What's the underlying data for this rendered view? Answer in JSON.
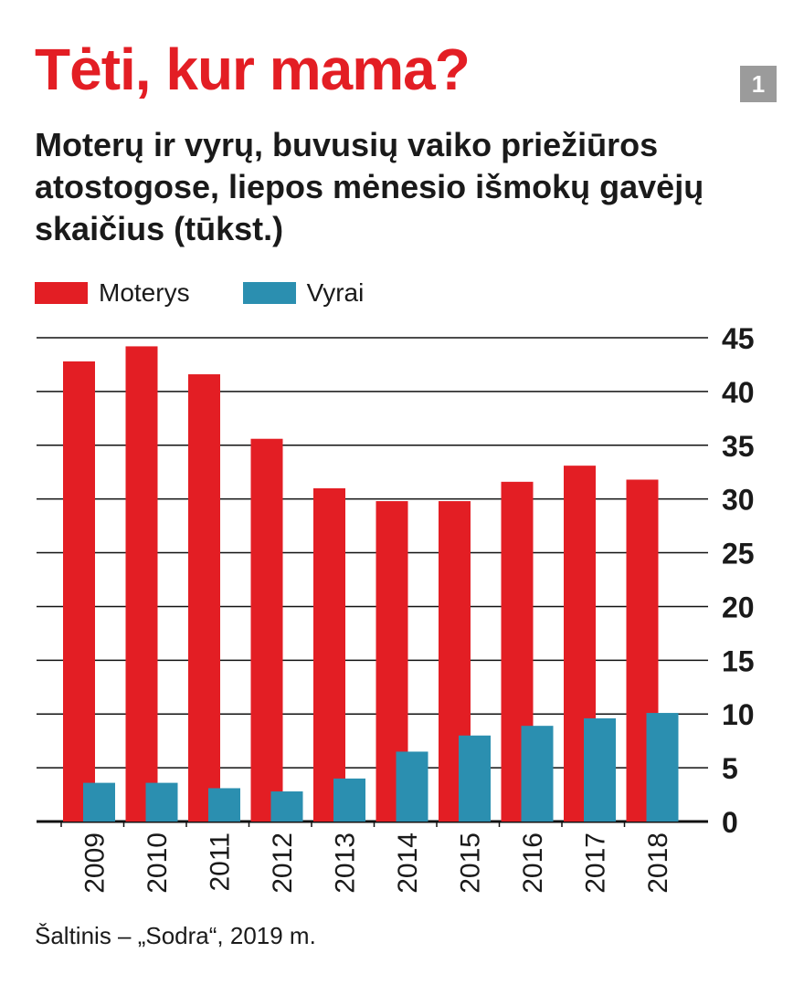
{
  "header": {
    "title": "Tėti, kur mama?",
    "badge": "1",
    "subtitle": "Moterų ir vyrų, buvusių vaiko priežiūros atostogose, liepos mėnesio išmokų gavėjų skaičius (tūkst.)"
  },
  "legend": {
    "women_label": "Moterys",
    "men_label": "Vyrai"
  },
  "source": "Šaltinis – „Sodra“, 2019 m.",
  "colors": {
    "women": "#e31e24",
    "men": "#2b8fb0",
    "title": "#e31e24",
    "badge": "#9b9b9b"
  },
  "chart_data": {
    "type": "bar",
    "categories": [
      "2009",
      "2010",
      "2011",
      "2012",
      "2013",
      "2014",
      "2015",
      "2016",
      "2017",
      "2018"
    ],
    "series": [
      {
        "name": "Moterys",
        "values": [
          42.8,
          44.2,
          41.6,
          35.6,
          31.0,
          29.8,
          29.8,
          31.6,
          33.1,
          31.8
        ]
      },
      {
        "name": "Vyrai",
        "values": [
          3.6,
          3.6,
          3.1,
          2.8,
          4.0,
          6.5,
          8.0,
          8.9,
          9.6,
          10.1
        ]
      }
    ],
    "ylim": [
      0,
      45
    ],
    "yticks": [
      0,
      5,
      10,
      15,
      20,
      25,
      30,
      35,
      40,
      45
    ],
    "y_axis_position": "right",
    "grid": true,
    "legend_position": "top-left",
    "x_label_orientation": "vertical"
  }
}
